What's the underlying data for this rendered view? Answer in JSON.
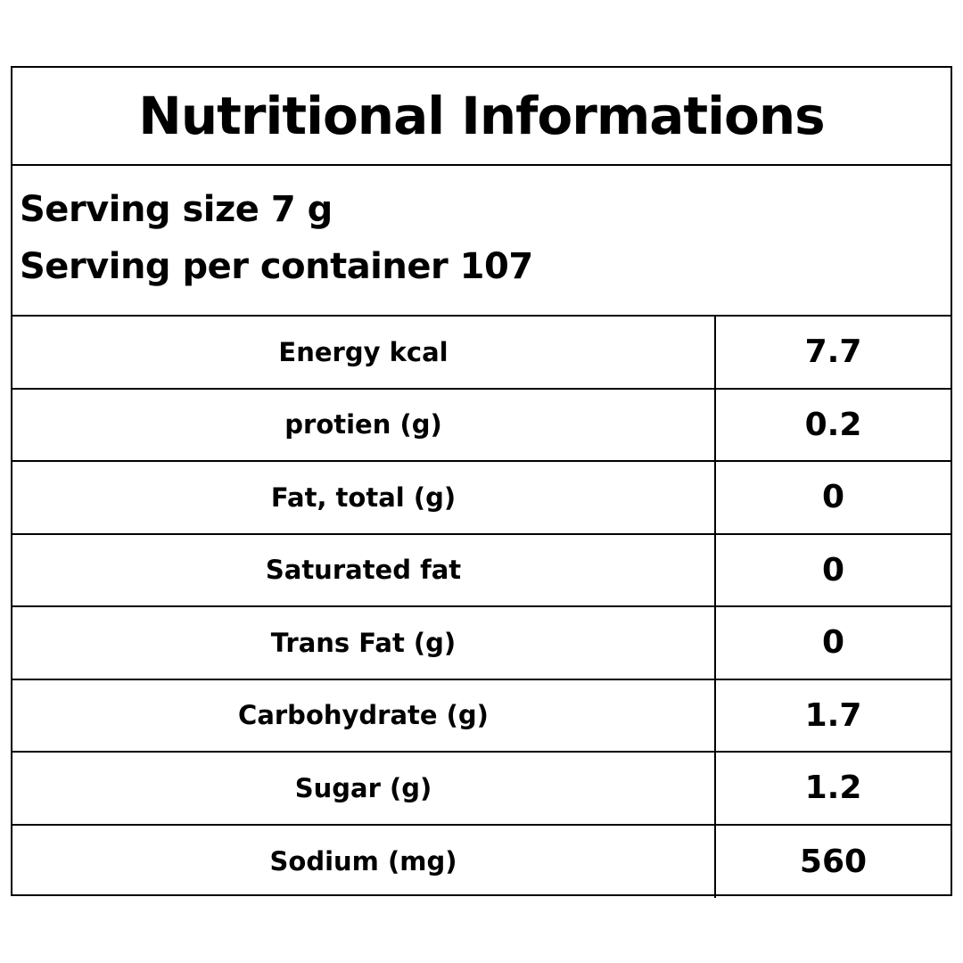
{
  "title": "Nutritional Informations",
  "serving": {
    "size": "Serving size 7 g",
    "per_container": "Serving per container 107"
  },
  "nutrients": [
    {
      "label": "Energy kcal",
      "value": "7.7"
    },
    {
      "label": "protien (g)",
      "value": "0.2"
    },
    {
      "label": "Fat, total (g)",
      "value": "0"
    },
    {
      "label": "Saturated fat",
      "value": "0"
    },
    {
      "label": "Trans Fat (g)",
      "value": "0"
    },
    {
      "label": "Carbohydrate (g)",
      "value": "1.7"
    },
    {
      "label": "Sugar (g)",
      "value": "1.2"
    },
    {
      "label": "Sodium (mg)",
      "value": "560"
    }
  ]
}
